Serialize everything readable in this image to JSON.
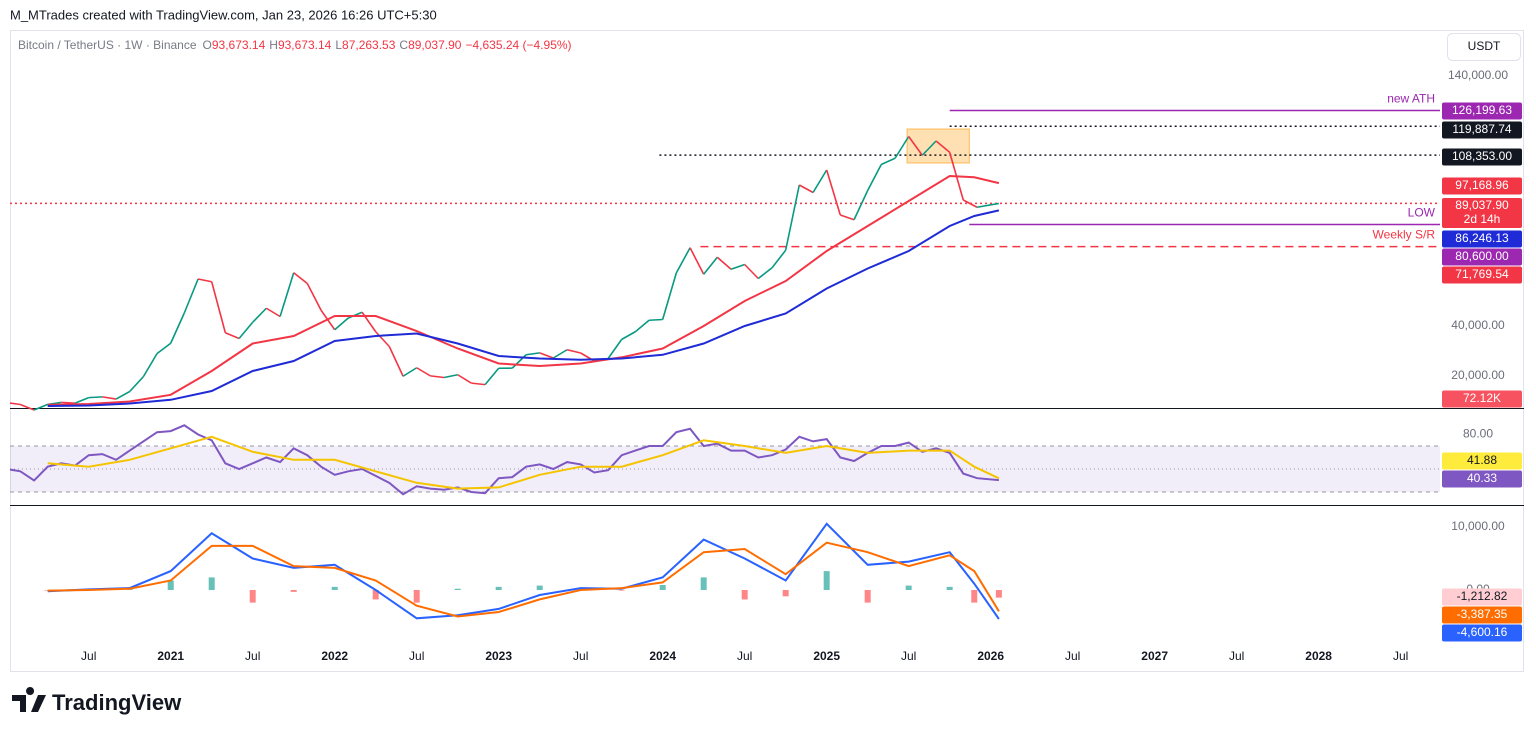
{
  "header": {
    "attribution": "M_MTrades created with TradingView.com, Jan 23, 2026 16:26 UTC+5:30",
    "currency": "USDT"
  },
  "footer": {
    "logo": "TradingView"
  },
  "chart_data": [
    {
      "type": "line",
      "title": "Bitcoin / TetherUS · 1W · Binance",
      "ohlc": [
        {
          "letter": "O",
          "value": "93,673.14"
        },
        {
          "letter": "H",
          "value": "93,673.14"
        },
        {
          "letter": "L",
          "value": "87,263.53"
        },
        {
          "letter": "C",
          "value": "89,037.90"
        }
      ],
      "change": "−4,635.24 (−4.95%)",
      "xlim": [
        2020.02,
        2028.74
      ],
      "ylim": [
        7200,
        158400
      ],
      "yticks": [
        {
          "value": 20000,
          "label": "20,000.00"
        },
        {
          "value": 40000,
          "label": "40,000.00"
        },
        {
          "value": 140000,
          "label": "140,000.00"
        }
      ],
      "series": [
        {
          "color": "#089981",
          "x": [
            2020,
            2020.083,
            2020.167,
            2020.25,
            2020.333,
            2020.417,
            2020.5,
            2020.583,
            2020.667,
            2020.75,
            2020.833,
            2020.917,
            2021,
            2021.083,
            2021.167,
            2021.25,
            2021.333,
            2021.417,
            2021.5,
            2021.583,
            2021.667,
            2021.75,
            2021.833,
            2021.917,
            2022,
            2022.083,
            2022.167,
            2022.25,
            2022.333,
            2022.417,
            2022.5,
            2022.583,
            2022.667,
            2022.75,
            2022.833,
            2022.917,
            2023,
            2023.083,
            2023.167,
            2023.25,
            2023.333,
            2023.417,
            2023.5,
            2023.583,
            2023.667,
            2023.75,
            2023.833,
            2023.917,
            2024,
            2024.083,
            2024.167,
            2024.25,
            2024.333,
            2024.417,
            2024.5,
            2024.583,
            2024.667,
            2024.75,
            2024.833,
            2024.917,
            2025,
            2025.083,
            2025.167,
            2025.25,
            2025.333,
            2025.417,
            2025.5,
            2025.583,
            2025.667,
            2025.75,
            2025.833,
            2025.917,
            2026.05
          ],
          "values": [
            9350,
            8600,
            6400,
            8650,
            9450,
            9140,
            11350,
            11650,
            10780,
            13800,
            19700,
            29000,
            33100,
            45200,
            58800,
            57700,
            37300,
            35000,
            41500,
            47100,
            43800,
            61300,
            57000,
            46300,
            38500,
            43200,
            45500,
            37700,
            31800,
            19900,
            23300,
            20050,
            19400,
            20500,
            17150,
            16550,
            23100,
            23150,
            28500,
            29250,
            27200,
            30500,
            29200,
            26000,
            26950,
            34650,
            37700,
            42300,
            42600,
            61200,
            71300,
            60700,
            67500,
            62700,
            64600,
            59000,
            63300,
            70300,
            96400,
            93400,
            102400,
            84400,
            82500,
            94200,
            104600,
            107100,
            115800,
            108300,
            114000,
            109500,
            90400,
            87500,
            89037.9
          ]
        },
        {
          "color": "#f23645",
          "x": [
            2020.25,
            2020.5,
            2020.75,
            2021,
            2021.25,
            2021.5,
            2021.75,
            2022,
            2022.25,
            2022.5,
            2022.75,
            2023,
            2023.25,
            2023.5,
            2023.75,
            2024,
            2024.25,
            2024.5,
            2024.75,
            2025,
            2025.25,
            2025.5,
            2025.75,
            2025.9,
            2026.05
          ],
          "values": [
            8500,
            8800,
            9800,
            12500,
            22000,
            33000,
            36000,
            44000,
            44000,
            38000,
            31000,
            25000,
            24000,
            25000,
            27500,
            31000,
            40000,
            50000,
            58000,
            70000,
            80000,
            90000,
            100000,
            99500,
            97168.96
          ]
        },
        {
          "color": "#1e2bd6",
          "x": [
            2020.25,
            2020.5,
            2020.75,
            2021,
            2021.25,
            2021.5,
            2021.75,
            2022,
            2022.25,
            2022.5,
            2022.75,
            2023,
            2023.25,
            2023.5,
            2023.75,
            2024,
            2024.25,
            2024.5,
            2024.75,
            2025,
            2025.25,
            2025.5,
            2025.75,
            2025.9,
            2026.05
          ],
          "values": [
            8000,
            8200,
            9000,
            10500,
            14000,
            22000,
            26000,
            34000,
            36000,
            37000,
            33000,
            28000,
            27000,
            26500,
            27000,
            28500,
            33000,
            40000,
            45000,
            55000,
            63000,
            70000,
            80000,
            84000,
            86246.13
          ]
        }
      ],
      "zone": {
        "x": [
          2025.49,
          2025.87
        ],
        "y": [
          105200,
          118800
        ],
        "color": "#ff9800"
      },
      "levels": [
        {
          "value": 126199.63,
          "color": "#9c27b0",
          "style": "solid",
          "from": 2025.75,
          "annotation": "new ATH"
        },
        {
          "value": 119887.74,
          "color": "#131722",
          "style": "dotted",
          "from": 2025.75
        },
        {
          "value": 108353,
          "color": "#131722",
          "style": "dotted",
          "from": 2023.98
        },
        {
          "value": 89037.9,
          "color": "#f23645",
          "style": "dotted",
          "from": 2020.02
        },
        {
          "value": 80600,
          "color": "#9c27b0",
          "style": "solid",
          "from": 2025.87,
          "annotation": "LOW"
        },
        {
          "value": 71769.54,
          "color": "#f23645",
          "style": "dashed",
          "from": 2024.23,
          "annotation": "Weekly S/R"
        }
      ],
      "price_tags": [
        {
          "label": "126,199.63",
          "bg": "#9c27b0",
          "fg": "#ffffff"
        },
        {
          "label": "119,887.74",
          "bg": "#131722",
          "fg": "#ffffff"
        },
        {
          "label": "108,353.00",
          "bg": "#131722",
          "fg": "#ffffff"
        },
        {
          "label": "97,168.96",
          "bg": "#f23645",
          "fg": "#ffffff"
        },
        {
          "label": "89,037.90",
          "sub": "2d 14h",
          "bg": "#f23645",
          "fg": "#ffffff"
        },
        {
          "label": "86,246.13",
          "bg": "#1e2bd6",
          "fg": "#ffffff"
        },
        {
          "label": "80,600.00",
          "bg": "#9c27b0",
          "fg": "#ffffff"
        },
        {
          "label": "71,769.54",
          "bg": "#f23645",
          "fg": "#ffffff"
        },
        {
          "label": "72.12K",
          "bg": "#f7525f",
          "fg": "#ffffff"
        }
      ]
    },
    {
      "type": "line",
      "xlim": [
        2020.02,
        2028.74
      ],
      "ylim": [
        18.7,
        102.2
      ],
      "yticks": [
        {
          "value": 80,
          "label": "80.00"
        }
      ],
      "bands": [
        30,
        70
      ],
      "midline": 50,
      "band_color": "#7e57c2",
      "series": [
        {
          "color": "#7e57c2",
          "x": [
            2020,
            2020.083,
            2020.167,
            2020.25,
            2020.333,
            2020.417,
            2020.5,
            2020.583,
            2020.667,
            2020.75,
            2020.833,
            2020.917,
            2021,
            2021.083,
            2021.167,
            2021.25,
            2021.333,
            2021.417,
            2021.5,
            2021.583,
            2021.667,
            2021.75,
            2021.833,
            2021.917,
            2022,
            2022.083,
            2022.167,
            2022.25,
            2022.333,
            2022.417,
            2022.5,
            2022.583,
            2022.667,
            2022.75,
            2022.833,
            2022.917,
            2023,
            2023.083,
            2023.167,
            2023.25,
            2023.333,
            2023.417,
            2023.5,
            2023.583,
            2023.667,
            2023.75,
            2023.833,
            2023.917,
            2024,
            2024.083,
            2024.167,
            2024.25,
            2024.333,
            2024.417,
            2024.5,
            2024.583,
            2024.667,
            2024.75,
            2024.833,
            2024.917,
            2025,
            2025.083,
            2025.167,
            2025.25,
            2025.333,
            2025.417,
            2025.5,
            2025.583,
            2025.667,
            2025.75,
            2025.833,
            2025.917,
            2026.05
          ],
          "values": [
            50,
            48,
            40,
            52,
            55,
            53,
            62,
            63,
            58,
            66,
            74,
            82,
            83,
            88,
            80,
            75,
            55,
            50,
            55,
            60,
            56,
            68,
            62,
            52,
            45,
            48,
            50,
            44,
            38,
            28,
            35,
            33,
            32,
            34,
            30,
            29,
            42,
            43,
            52,
            54,
            50,
            56,
            54,
            47,
            49,
            62,
            66,
            70,
            70,
            82,
            85,
            70,
            72,
            66,
            66,
            60,
            62,
            67,
            78,
            74,
            76,
            60,
            57,
            64,
            70,
            70,
            73,
            65,
            68,
            64,
            46,
            42,
            40.33
          ]
        },
        {
          "color": "#f5c400",
          "x": [
            2020.25,
            2020.5,
            2020.75,
            2021,
            2021.25,
            2021.5,
            2021.75,
            2022,
            2022.25,
            2022.5,
            2022.75,
            2023,
            2023.25,
            2023.5,
            2023.75,
            2024,
            2024.25,
            2024.5,
            2024.75,
            2025,
            2025.25,
            2025.5,
            2025.75,
            2025.9,
            2026.05
          ],
          "values": [
            55,
            52,
            58,
            68,
            78,
            65,
            58,
            58,
            48,
            38,
            33,
            34,
            45,
            52,
            52,
            62,
            75,
            70,
            64,
            70,
            64,
            66,
            66,
            52,
            41.88
          ]
        }
      ],
      "tags": [
        {
          "label": "41.88",
          "bg": "#ffeb3b",
          "fg": "#131722"
        },
        {
          "label": "40.33",
          "bg": "#7e57c2",
          "fg": "#ffffff"
        }
      ]
    },
    {
      "type": "line",
      "xlim": [
        2020.02,
        2028.74
      ],
      "ylim": [
        -10635,
        13333
      ],
      "yticks": [
        {
          "value": 10000,
          "label": "10,000.00"
        },
        {
          "value": 0,
          "label": "0.00"
        }
      ],
      "xticks": [
        {
          "value": 2020.5,
          "label": "Jul"
        },
        2021,
        {
          "value": 2021.5,
          "label": "Jul"
        },
        2022,
        {
          "value": 2022.5,
          "label": "Jul"
        },
        2023,
        {
          "value": 2023.5,
          "label": "Jul"
        },
        2024,
        {
          "value": 2024.5,
          "label": "Jul"
        },
        2025,
        {
          "value": 2025.5,
          "label": "Jul"
        },
        2026,
        {
          "value": 2026.5,
          "label": "Jul"
        },
        2027,
        {
          "value": 2027.5,
          "label": "Jul"
        },
        2028,
        {
          "value": 2028.5,
          "label": "Jul"
        }
      ],
      "histogram": {
        "x": [
          2020.25,
          2020.5,
          2020.75,
          2021,
          2021.25,
          2021.5,
          2021.75,
          2022,
          2022.25,
          2022.5,
          2022.75,
          2023,
          2023.25,
          2023.5,
          2023.75,
          2024,
          2024.25,
          2024.5,
          2024.75,
          2025,
          2025.25,
          2025.5,
          2025.75,
          2025.9,
          2026.05
        ],
        "values": [
          -100,
          100,
          100,
          1500,
          2000,
          -2000,
          -300,
          500,
          -1500,
          -2000,
          200,
          500,
          700,
          300,
          -100,
          800,
          2000,
          -1500,
          -1000,
          3000,
          -2000,
          700,
          500,
          -2000,
          -1212.82
        ],
        "colors": [
          "#26a69a",
          "#ff5252"
        ]
      },
      "series": [
        {
          "color": "#2962ff",
          "x": [
            2020.25,
            2020.5,
            2020.75,
            2021,
            2021.25,
            2021.5,
            2021.75,
            2022,
            2022.25,
            2022.5,
            2022.75,
            2023,
            2023.25,
            2023.5,
            2023.75,
            2024,
            2024.25,
            2024.5,
            2024.75,
            2025,
            2025.25,
            2025.5,
            2025.75,
            2025.9,
            2026.05
          ],
          "values": [
            -200,
            100,
            300,
            3000,
            9000,
            5000,
            3500,
            4000,
            0,
            -4500,
            -4000,
            -3000,
            -800,
            300,
            200,
            2000,
            8000,
            5000,
            1500,
            10500,
            4000,
            4500,
            6000,
            1000,
            -4600.16
          ]
        },
        {
          "color": "#ff6d00",
          "x": [
            2020.25,
            2020.5,
            2020.75,
            2021,
            2021.25,
            2021.5,
            2021.75,
            2022,
            2022.25,
            2022.5,
            2022.75,
            2023,
            2023.25,
            2023.5,
            2023.75,
            2024,
            2024.25,
            2024.5,
            2024.75,
            2025,
            2025.25,
            2025.5,
            2025.75,
            2025.9,
            2026.05
          ],
          "values": [
            -100,
            0,
            200,
            1500,
            7000,
            7000,
            3800,
            3500,
            1500,
            -2500,
            -4200,
            -3500,
            -1500,
            0,
            300,
            1200,
            6000,
            6500,
            2500,
            7500,
            6000,
            3800,
            5500,
            3000,
            -3387.35
          ]
        }
      ],
      "tags": [
        {
          "label": "-1,212.82",
          "bg": "#ffcdd2",
          "fg": "#131722"
        },
        {
          "label": "-3,387.35",
          "bg": "#ff6d00",
          "fg": "#ffffff"
        },
        {
          "label": "-4,600.16",
          "bg": "#2962ff",
          "fg": "#ffffff"
        }
      ]
    }
  ]
}
